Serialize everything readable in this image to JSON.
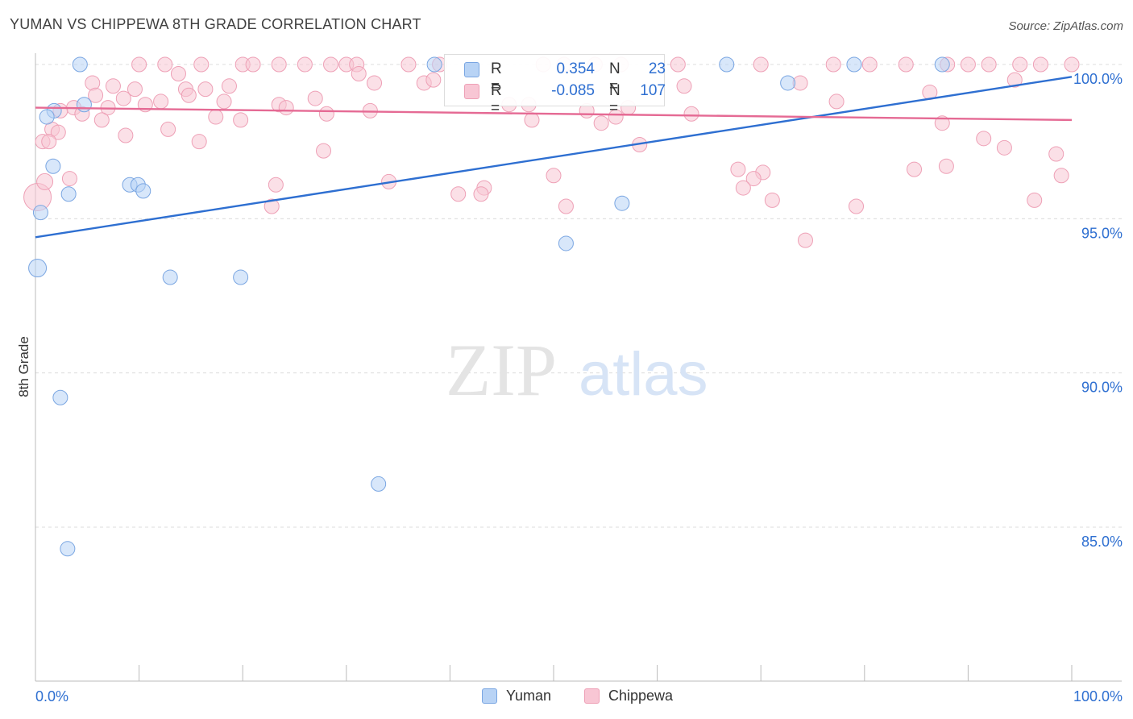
{
  "title": "YUMAN VS CHIPPEWA 8TH GRADE CORRELATION CHART",
  "source": "Source: ZipAtlas.com",
  "watermark": {
    "zip": "ZIP",
    "atlas": "atlas"
  },
  "legend": {
    "rows": [
      {
        "r_label": "R =",
        "r_value": "0.354",
        "n_label": "N =",
        "n_value": "23"
      },
      {
        "r_label": "R =",
        "r_value": "-0.085",
        "n_label": "N =",
        "n_value": "107"
      }
    ]
  },
  "bottom_legend": {
    "yuman": "Yuman",
    "chippewa": "Chippewa"
  },
  "colors": {
    "yuman_fill": "#b8d3f5",
    "yuman_stroke": "#7aa6e2",
    "yuman_line": "#2e6fd1",
    "chippewa_fill": "#f8c6d4",
    "chippewa_stroke": "#eea0b6",
    "chippewa_line": "#e56a94",
    "axis_text": "#2e6fd1"
  },
  "chart_data": {
    "type": "scatter",
    "title": "YUMAN VS CHIPPEWA 8TH GRADE CORRELATION CHART",
    "xlabel": "",
    "ylabel": "8th Grade",
    "xlim": [
      0,
      100
    ],
    "ylim": [
      80,
      101.5
    ],
    "x_tick_labels": [
      {
        "value": 0,
        "label": "0.0%"
      },
      {
        "value": 100,
        "label": "100.0%"
      }
    ],
    "y_ticks": [
      {
        "value": 100,
        "label": "100.0%"
      },
      {
        "value": 95,
        "label": "95.0%"
      },
      {
        "value": 90,
        "label": "90.0%"
      },
      {
        "value": 85,
        "label": "85.0%"
      }
    ],
    "x_minor_ticks": [
      0,
      10,
      20,
      30,
      40,
      50,
      60,
      70,
      80,
      90,
      100
    ],
    "grid": true,
    "series": [
      {
        "name": "Yuman",
        "R": 0.354,
        "N": 23,
        "trend": {
          "x": [
            0,
            100
          ],
          "y": [
            94.4,
            99.6
          ]
        },
        "points": [
          {
            "x": 4.3,
            "y": 100,
            "s": 8
          },
          {
            "x": 38.5,
            "y": 100,
            "s": 8
          },
          {
            "x": 66.7,
            "y": 100,
            "s": 8
          },
          {
            "x": 79.0,
            "y": 100,
            "s": 8
          },
          {
            "x": 87.5,
            "y": 100,
            "s": 8
          },
          {
            "x": 72.6,
            "y": 99.4,
            "s": 8
          },
          {
            "x": 1.8,
            "y": 98.5,
            "s": 8
          },
          {
            "x": 1.1,
            "y": 98.3,
            "s": 8
          },
          {
            "x": 4.7,
            "y": 98.7,
            "s": 8
          },
          {
            "x": 1.7,
            "y": 96.7,
            "s": 8
          },
          {
            "x": 9.1,
            "y": 96.1,
            "s": 8
          },
          {
            "x": 9.9,
            "y": 96.1,
            "s": 8
          },
          {
            "x": 10.4,
            "y": 95.9,
            "s": 8
          },
          {
            "x": 3.2,
            "y": 95.8,
            "s": 8
          },
          {
            "x": 0.5,
            "y": 95.2,
            "s": 8
          },
          {
            "x": 56.6,
            "y": 95.5,
            "s": 8
          },
          {
            "x": 51.2,
            "y": 94.2,
            "s": 8
          },
          {
            "x": 0.2,
            "y": 93.4,
            "s": 10
          },
          {
            "x": 13.0,
            "y": 93.1,
            "s": 8
          },
          {
            "x": 19.8,
            "y": 93.1,
            "s": 8
          },
          {
            "x": 2.4,
            "y": 89.2,
            "s": 8
          },
          {
            "x": 33.1,
            "y": 86.4,
            "s": 8
          },
          {
            "x": 3.1,
            "y": 84.3,
            "s": 8
          }
        ]
      },
      {
        "name": "Chippewa",
        "R": -0.085,
        "N": 107,
        "trend": {
          "x": [
            0,
            100
          ],
          "y": [
            98.6,
            98.2
          ]
        },
        "points": [
          {
            "x": 10,
            "y": 100,
            "s": 8
          },
          {
            "x": 12.5,
            "y": 100,
            "s": 8
          },
          {
            "x": 16,
            "y": 100,
            "s": 8
          },
          {
            "x": 20,
            "y": 100,
            "s": 8
          },
          {
            "x": 21,
            "y": 100,
            "s": 8
          },
          {
            "x": 23.5,
            "y": 100,
            "s": 8
          },
          {
            "x": 26,
            "y": 100,
            "s": 8
          },
          {
            "x": 28.5,
            "y": 100,
            "s": 8
          },
          {
            "x": 30,
            "y": 100,
            "s": 8
          },
          {
            "x": 31,
            "y": 100,
            "s": 8
          },
          {
            "x": 36,
            "y": 100,
            "s": 8
          },
          {
            "x": 39,
            "y": 100,
            "s": 8
          },
          {
            "x": 49,
            "y": 100,
            "s": 8
          },
          {
            "x": 51,
            "y": 100,
            "s": 8
          },
          {
            "x": 54,
            "y": 100,
            "s": 8
          },
          {
            "x": 56.5,
            "y": 100,
            "s": 8
          },
          {
            "x": 62,
            "y": 100,
            "s": 8
          },
          {
            "x": 70,
            "y": 100,
            "s": 8
          },
          {
            "x": 77,
            "y": 100,
            "s": 8
          },
          {
            "x": 80.5,
            "y": 100,
            "s": 8
          },
          {
            "x": 84,
            "y": 100,
            "s": 8
          },
          {
            "x": 88,
            "y": 100,
            "s": 8
          },
          {
            "x": 90,
            "y": 100,
            "s": 8
          },
          {
            "x": 92,
            "y": 100,
            "s": 8
          },
          {
            "x": 95,
            "y": 100,
            "s": 8
          },
          {
            "x": 97,
            "y": 100,
            "s": 8
          },
          {
            "x": 100,
            "y": 100,
            "s": 8
          },
          {
            "x": 31.2,
            "y": 99.7,
            "s": 8
          },
          {
            "x": 13.8,
            "y": 99.7,
            "s": 8
          },
          {
            "x": 5.5,
            "y": 99.4,
            "s": 8
          },
          {
            "x": 7.5,
            "y": 99.3,
            "s": 8
          },
          {
            "x": 9.6,
            "y": 99.2,
            "s": 8
          },
          {
            "x": 14.5,
            "y": 99.2,
            "s": 8
          },
          {
            "x": 16.4,
            "y": 99.2,
            "s": 8
          },
          {
            "x": 18.7,
            "y": 99.3,
            "s": 8
          },
          {
            "x": 32.7,
            "y": 99.4,
            "s": 8
          },
          {
            "x": 37.5,
            "y": 99.4,
            "s": 8
          },
          {
            "x": 62.6,
            "y": 99.3,
            "s": 8
          },
          {
            "x": 73.8,
            "y": 99.4,
            "s": 8
          },
          {
            "x": 86.3,
            "y": 99.1,
            "s": 8
          },
          {
            "x": 94.5,
            "y": 99.5,
            "s": 8
          },
          {
            "x": 5.8,
            "y": 99.0,
            "s": 8
          },
          {
            "x": 8.5,
            "y": 98.9,
            "s": 8
          },
          {
            "x": 12.1,
            "y": 98.8,
            "s": 8
          },
          {
            "x": 14.8,
            "y": 99.0,
            "s": 8
          },
          {
            "x": 18.2,
            "y": 98.8,
            "s": 8
          },
          {
            "x": 27.0,
            "y": 98.9,
            "s": 8
          },
          {
            "x": 45.7,
            "y": 98.7,
            "s": 8
          },
          {
            "x": 77.3,
            "y": 98.8,
            "s": 8
          },
          {
            "x": 3.7,
            "y": 98.6,
            "s": 8
          },
          {
            "x": 7.0,
            "y": 98.6,
            "s": 8
          },
          {
            "x": 10.6,
            "y": 98.7,
            "s": 8
          },
          {
            "x": 23.5,
            "y": 98.7,
            "s": 8
          },
          {
            "x": 24.2,
            "y": 98.6,
            "s": 8
          },
          {
            "x": 28.1,
            "y": 98.4,
            "s": 8
          },
          {
            "x": 32.3,
            "y": 98.5,
            "s": 8
          },
          {
            "x": 53.2,
            "y": 98.5,
            "s": 8
          },
          {
            "x": 57.2,
            "y": 98.6,
            "s": 8
          },
          {
            "x": 63.3,
            "y": 98.4,
            "s": 8
          },
          {
            "x": 2.4,
            "y": 98.5,
            "s": 8
          },
          {
            "x": 4.5,
            "y": 98.4,
            "s": 8
          },
          {
            "x": 6.4,
            "y": 98.2,
            "s": 8
          },
          {
            "x": 17.4,
            "y": 98.3,
            "s": 8
          },
          {
            "x": 19.8,
            "y": 98.2,
            "s": 8
          },
          {
            "x": 47.9,
            "y": 98.2,
            "s": 8
          },
          {
            "x": 54.6,
            "y": 98.1,
            "s": 8
          },
          {
            "x": 56.0,
            "y": 98.3,
            "s": 8
          },
          {
            "x": 87.5,
            "y": 98.1,
            "s": 8
          },
          {
            "x": 1.6,
            "y": 97.9,
            "s": 8
          },
          {
            "x": 2.2,
            "y": 97.8,
            "s": 8
          },
          {
            "x": 8.7,
            "y": 97.7,
            "s": 8
          },
          {
            "x": 12.8,
            "y": 97.9,
            "s": 8
          },
          {
            "x": 0.7,
            "y": 97.5,
            "s": 8
          },
          {
            "x": 1.3,
            "y": 97.5,
            "s": 8
          },
          {
            "x": 15.8,
            "y": 97.5,
            "s": 8
          },
          {
            "x": 27.8,
            "y": 97.2,
            "s": 8
          },
          {
            "x": 58.3,
            "y": 97.4,
            "s": 8
          },
          {
            "x": 91.5,
            "y": 97.6,
            "s": 8
          },
          {
            "x": 93.5,
            "y": 97.3,
            "s": 8
          },
          {
            "x": 98.5,
            "y": 97.1,
            "s": 8
          },
          {
            "x": 50.0,
            "y": 96.4,
            "s": 8
          },
          {
            "x": 67.8,
            "y": 96.6,
            "s": 8
          },
          {
            "x": 70.2,
            "y": 96.5,
            "s": 8
          },
          {
            "x": 84.8,
            "y": 96.6,
            "s": 8
          },
          {
            "x": 87.9,
            "y": 96.7,
            "s": 8
          },
          {
            "x": 99.0,
            "y": 96.4,
            "s": 8
          },
          {
            "x": 3.3,
            "y": 96.3,
            "s": 8
          },
          {
            "x": 23.2,
            "y": 96.1,
            "s": 8
          },
          {
            "x": 34.1,
            "y": 96.2,
            "s": 8
          },
          {
            "x": 69.3,
            "y": 96.3,
            "s": 8
          },
          {
            "x": 68.3,
            "y": 96.0,
            "s": 8
          },
          {
            "x": 40.8,
            "y": 95.8,
            "s": 8
          },
          {
            "x": 43.3,
            "y": 96.0,
            "s": 8
          },
          {
            "x": 43.0,
            "y": 95.8,
            "s": 8
          },
          {
            "x": 51.2,
            "y": 95.4,
            "s": 8
          },
          {
            "x": 22.8,
            "y": 95.4,
            "s": 8
          },
          {
            "x": 71.1,
            "y": 95.6,
            "s": 8
          },
          {
            "x": 79.2,
            "y": 95.4,
            "s": 8
          },
          {
            "x": 96.4,
            "y": 95.6,
            "s": 8
          },
          {
            "x": 74.3,
            "y": 94.3,
            "s": 8
          },
          {
            "x": 0.2,
            "y": 95.7,
            "s": 16
          },
          {
            "x": 0.9,
            "y": 96.2,
            "s": 9
          },
          {
            "x": 38.4,
            "y": 99.5,
            "s": 8
          },
          {
            "x": 47.6,
            "y": 98.7,
            "s": 8
          }
        ]
      }
    ]
  }
}
